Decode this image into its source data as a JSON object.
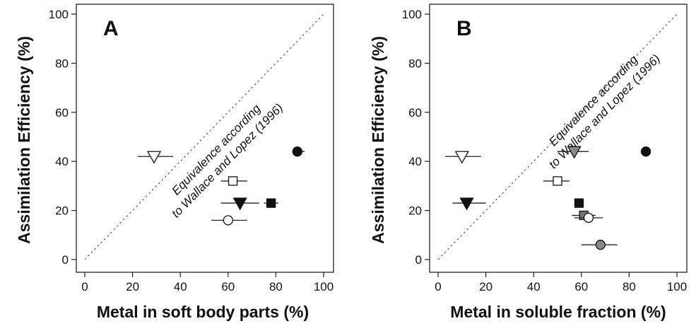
{
  "chart_data": [
    {
      "type": "scatter",
      "panel_label": "A",
      "xlabel": "Metal in soft body parts (%)",
      "ylabel": "Assimilation Efficiency (%)",
      "xlim": [
        0,
        100
      ],
      "ylim": [
        0,
        100
      ],
      "xticks": [
        "0",
        "20",
        "40",
        "60",
        "80",
        "100"
      ],
      "yticks": [
        "0",
        "20",
        "40",
        "60",
        "80",
        "100"
      ],
      "grid": false,
      "reference_line": {
        "x": [
          0,
          100
        ],
        "y": [
          0,
          100
        ],
        "style": "dotted"
      },
      "annotation": [
        "Equivalence according",
        "to Wallace and Lopez (1996)"
      ],
      "points": [
        {
          "marker": "triangle-down",
          "fill": "#ffffff",
          "x": 29,
          "y": 42,
          "xerr": [
            22,
            37
          ]
        },
        {
          "marker": "circle",
          "fill": "#111111",
          "x": 89,
          "y": 44,
          "xerr": [
            87,
            92
          ]
        },
        {
          "marker": "square",
          "fill": "#ffffff",
          "x": 62,
          "y": 32,
          "xerr": [
            57,
            68
          ]
        },
        {
          "marker": "triangle-down",
          "fill": "#111111",
          "x": 65,
          "y": 23,
          "xerr": [
            57,
            73
          ]
        },
        {
          "marker": "square",
          "fill": "#111111",
          "x": 78,
          "y": 23,
          "xerr": [
            75,
            81
          ]
        },
        {
          "marker": "circle",
          "fill": "#ffffff",
          "x": 60,
          "y": 16,
          "xerr": [
            53,
            68
          ]
        }
      ]
    },
    {
      "type": "scatter",
      "panel_label": "B",
      "xlabel": "Metal in soluble fraction (%)",
      "ylabel": "Assimilation Efficiency (%)",
      "xlim": [
        0,
        100
      ],
      "ylim": [
        0,
        100
      ],
      "xticks": [
        "0",
        "20",
        "40",
        "60",
        "80",
        "100"
      ],
      "yticks": [
        "0",
        "20",
        "40",
        "60",
        "80",
        "100"
      ],
      "grid": false,
      "reference_line": {
        "x": [
          0,
          100
        ],
        "y": [
          0,
          100
        ],
        "style": "dotted"
      },
      "annotation": [
        "Equivalence according",
        "to Wallace and Lopez (1996)"
      ],
      "points": [
        {
          "marker": "triangle-down",
          "fill": "#ffffff",
          "x": 10,
          "y": 42,
          "xerr": [
            3,
            18
          ]
        },
        {
          "marker": "triangle-down",
          "fill": "#888888",
          "x": 57,
          "y": 44,
          "xerr": [
            50,
            63
          ]
        },
        {
          "marker": "circle",
          "fill": "#111111",
          "x": 87,
          "y": 44,
          "xerr": [
            85,
            89
          ]
        },
        {
          "marker": "square",
          "fill": "#ffffff",
          "x": 50,
          "y": 32,
          "xerr": [
            44,
            55
          ]
        },
        {
          "marker": "triangle-down",
          "fill": "#111111",
          "x": 12,
          "y": 23,
          "xerr": [
            6,
            20
          ]
        },
        {
          "marker": "square",
          "fill": "#111111",
          "x": 59,
          "y": 23,
          "xerr": [
            58,
            61
          ]
        },
        {
          "marker": "square",
          "fill": "#777777",
          "x": 61,
          "y": 18,
          "xerr": [
            56,
            66
          ]
        },
        {
          "marker": "circle",
          "fill": "#ffffff",
          "x": 63,
          "y": 17,
          "xerr": [
            57,
            69
          ]
        },
        {
          "marker": "circle",
          "fill": "#888888",
          "x": 68,
          "y": 6,
          "xerr": [
            60,
            75
          ]
        }
      ]
    }
  ]
}
